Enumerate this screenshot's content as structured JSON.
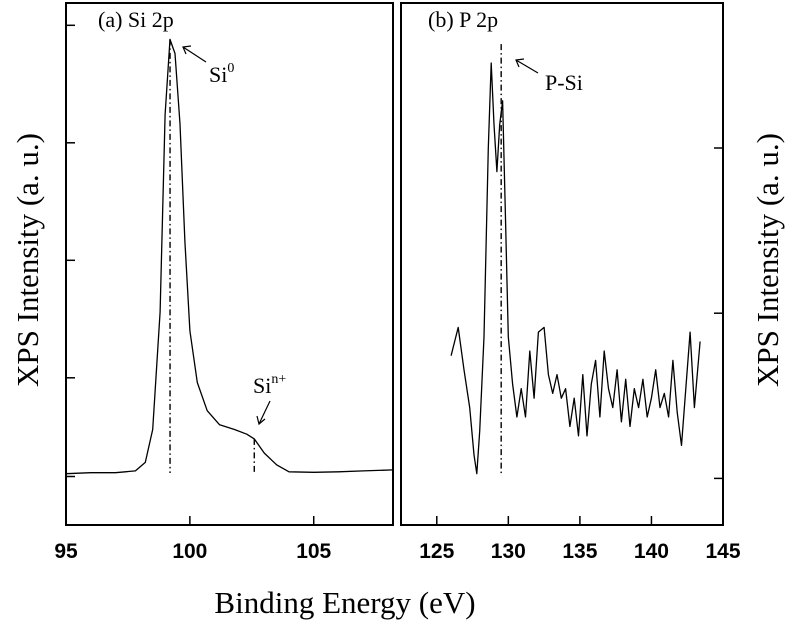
{
  "chart_data": [
    {
      "type": "line",
      "panel_label": "(a) Si 2p",
      "ylabel": "XPS Intensity (a. u.)",
      "xlim": [
        95,
        108.2
      ],
      "ylim": [
        0,
        1
      ],
      "xticks": [
        95,
        100,
        105
      ],
      "yticks_unlabeled": [
        0.05,
        0.26,
        0.51,
        0.76,
        1.01
      ],
      "series": [
        {
          "values": [
            [
              95.0,
              0.056
            ],
            [
              96.0,
              0.058
            ],
            [
              97.0,
              0.058
            ],
            [
              97.8,
              0.062
            ],
            [
              98.2,
              0.08
            ],
            [
              98.5,
              0.15
            ],
            [
              98.8,
              0.4
            ],
            [
              99.0,
              0.82
            ],
            [
              99.2,
              0.98
            ],
            [
              99.4,
              0.95
            ],
            [
              99.6,
              0.8
            ],
            [
              99.8,
              0.55
            ],
            [
              100.0,
              0.36
            ],
            [
              100.3,
              0.25
            ],
            [
              100.7,
              0.19
            ],
            [
              101.2,
              0.16
            ],
            [
              101.8,
              0.15
            ],
            [
              102.3,
              0.14
            ],
            [
              102.6,
              0.13
            ],
            [
              103.0,
              0.1
            ],
            [
              103.5,
              0.075
            ],
            [
              104.0,
              0.06
            ],
            [
              105.0,
              0.059
            ],
            [
              106.0,
              0.06
            ],
            [
              107.0,
              0.062
            ],
            [
              108.2,
              0.064
            ]
          ]
        }
      ],
      "reference_lines": [
        {
          "x": 99.2,
          "y_top": 0.98
        },
        {
          "x": 102.6,
          "y_top": 0.13
        }
      ],
      "annotations": [
        {
          "base": "Si",
          "sup": "0"
        },
        {
          "base": "Si",
          "sup": "n+"
        }
      ]
    },
    {
      "type": "line",
      "panel_label": "(b) P 2p",
      "ylabel": "XPS Intensity (a. u.)",
      "xlabel": "Binding Energy (eV)",
      "xlim": [
        122.5,
        145
      ],
      "ylim": [
        0,
        1
      ],
      "xticks": [
        125,
        130,
        135,
        140,
        145
      ],
      "yticks_unlabeled": [
        0.05,
        0.4,
        0.75
      ],
      "series": [
        {
          "values": [
            [
              126.0,
              0.31
            ],
            [
              126.5,
              0.37
            ],
            [
              126.9,
              0.28
            ],
            [
              127.3,
              0.2
            ],
            [
              127.6,
              0.1
            ],
            [
              127.8,
              0.06
            ],
            [
              128.0,
              0.15
            ],
            [
              128.3,
              0.35
            ],
            [
              128.6,
              0.75
            ],
            [
              128.8,
              0.93
            ],
            [
              129.0,
              0.8
            ],
            [
              129.2,
              0.7
            ],
            [
              129.4,
              0.8
            ],
            [
              129.6,
              0.85
            ],
            [
              129.8,
              0.6
            ],
            [
              130.0,
              0.35
            ],
            [
              130.3,
              0.25
            ],
            [
              130.6,
              0.18
            ],
            [
              130.9,
              0.24
            ],
            [
              131.2,
              0.18
            ],
            [
              131.5,
              0.32
            ],
            [
              131.8,
              0.22
            ],
            [
              132.1,
              0.36
            ],
            [
              132.5,
              0.37
            ],
            [
              132.8,
              0.27
            ],
            [
              133.1,
              0.23
            ],
            [
              133.4,
              0.27
            ],
            [
              133.7,
              0.22
            ],
            [
              134.0,
              0.24
            ],
            [
              134.3,
              0.16
            ],
            [
              134.6,
              0.22
            ],
            [
              134.9,
              0.14
            ],
            [
              135.2,
              0.27
            ],
            [
              135.5,
              0.14
            ],
            [
              135.8,
              0.25
            ],
            [
              136.1,
              0.3
            ],
            [
              136.4,
              0.18
            ],
            [
              136.7,
              0.32
            ],
            [
              137.0,
              0.24
            ],
            [
              137.3,
              0.2
            ],
            [
              137.6,
              0.28
            ],
            [
              137.9,
              0.17
            ],
            [
              138.2,
              0.26
            ],
            [
              138.5,
              0.16
            ],
            [
              138.8,
              0.24
            ],
            [
              139.1,
              0.2
            ],
            [
              139.4,
              0.26
            ],
            [
              139.7,
              0.18
            ],
            [
              140.0,
              0.22
            ],
            [
              140.3,
              0.28
            ],
            [
              140.6,
              0.2
            ],
            [
              140.9,
              0.23
            ],
            [
              141.2,
              0.18
            ],
            [
              141.5,
              0.3
            ],
            [
              141.8,
              0.19
            ],
            [
              142.1,
              0.12
            ],
            [
              142.4,
              0.24
            ],
            [
              142.7,
              0.36
            ],
            [
              143.0,
              0.2
            ],
            [
              143.4,
              0.34
            ]
          ]
        }
      ],
      "reference_lines": [
        {
          "x": 129.5,
          "y_top": 0.97
        }
      ],
      "annotations": [
        {
          "text": "P-Si"
        }
      ]
    }
  ]
}
